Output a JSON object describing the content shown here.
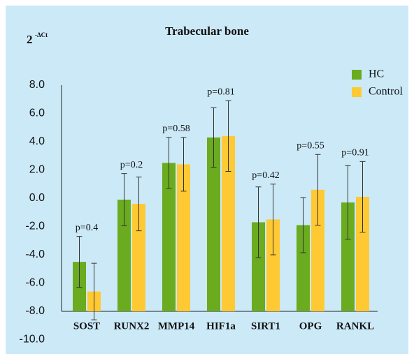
{
  "chart_data": {
    "type": "bar",
    "title": "Trabecular bone",
    "ylabel": "2",
    "ylabel_sup": "-ΔCt",
    "categories": [
      "SOST",
      "RUNX2",
      "MMP14",
      "HIF1a",
      "SIRT1",
      "OPG",
      "RANKL"
    ],
    "annotations": [
      "p=0.4",
      "p=0.2",
      "p=0.58",
      "p=0.81",
      "p=0.42",
      "p=0.55",
      "p=0.91"
    ],
    "series": [
      {
        "name": "HC",
        "color": "#6aab1f",
        "values": [
          -4.5,
          -0.1,
          2.5,
          4.3,
          -1.7,
          -1.9,
          -0.3
        ],
        "errors": [
          1.8,
          1.85,
          1.8,
          2.1,
          2.5,
          1.95,
          2.6
        ]
      },
      {
        "name": "Control",
        "color": "#ffc933",
        "values": [
          -6.6,
          -0.4,
          2.4,
          4.4,
          -1.5,
          0.6,
          0.1
        ],
        "errors": [
          2.0,
          1.9,
          1.9,
          2.5,
          2.5,
          2.5,
          2.5
        ]
      }
    ],
    "ylim": [
      -8,
      8
    ],
    "yticks": [
      {
        "value": 8,
        "label": "8.0"
      },
      {
        "value": 6,
        "label": "6.0"
      },
      {
        "value": 4,
        "label": "4.0"
      },
      {
        "value": 2,
        "label": "2.0"
      },
      {
        "value": 0,
        "label": "0.0"
      },
      {
        "value": -2,
        "label": "-2.0"
      },
      {
        "value": -4,
        "label": "-4.0"
      },
      {
        "value": -6,
        "label": "-6.0"
      },
      {
        "value": -8,
        "label": "-8.0"
      },
      {
        "value": -10,
        "label": "-10.0"
      }
    ],
    "legend": "top-right"
  }
}
